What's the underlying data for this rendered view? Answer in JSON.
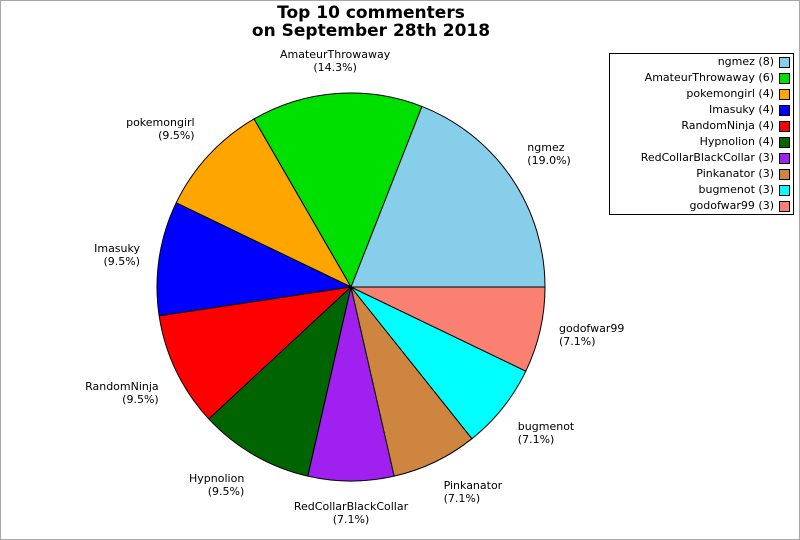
{
  "figure": {
    "title_line1": "Top 10 commenters",
    "title_line2": "on September 28th 2018",
    "background_color": "#ffffff",
    "border_color": "#a6a6a6"
  },
  "chart_data": {
    "type": "pie",
    "title": "Top 10 commenters on September 28th 2018",
    "total_count": 42,
    "start_angle_deg": 0,
    "direction": "counterclockwise",
    "legend_position": "upper-right",
    "legend_marker_side": "right",
    "slices": [
      {
        "name": "ngmez",
        "count": 8,
        "pct": 19.0,
        "pct_label": "(19.0%)",
        "legend_text": "ngmez (8)",
        "color": "#87CEEB"
      },
      {
        "name": "AmateurThrowaway",
        "count": 6,
        "pct": 14.3,
        "pct_label": "(14.3%)",
        "legend_text": "AmateurThrowaway (6)",
        "color": "#00E000"
      },
      {
        "name": "pokemongirl",
        "count": 4,
        "pct": 9.5,
        "pct_label": "(9.5%)",
        "legend_text": "pokemongirl (4)",
        "color": "#FFA500"
      },
      {
        "name": "Imasuky",
        "count": 4,
        "pct": 9.5,
        "pct_label": "(9.5%)",
        "legend_text": "Imasuky (4)",
        "color": "#0000FF"
      },
      {
        "name": "RandomNinja",
        "count": 4,
        "pct": 9.5,
        "pct_label": "(9.5%)",
        "legend_text": "RandomNinja (4)",
        "color": "#FF0000"
      },
      {
        "name": "Hypnolion",
        "count": 4,
        "pct": 9.5,
        "pct_label": "(9.5%)",
        "legend_text": "Hypnolion (4)",
        "color": "#006400"
      },
      {
        "name": "RedCollarBlackCollar",
        "count": 3,
        "pct": 7.1,
        "pct_label": "(7.1%)",
        "legend_text": "RedCollarBlackCollar (3)",
        "color": "#A020F0"
      },
      {
        "name": "Pinkanator",
        "count": 3,
        "pct": 7.1,
        "pct_label": "(7.1%)",
        "legend_text": "Pinkanator (3)",
        "color": "#CD853F"
      },
      {
        "name": "bugmenot",
        "count": 3,
        "pct": 7.1,
        "pct_label": "(7.1%)",
        "legend_text": "bugmenot (3)",
        "color": "#00FFFF"
      },
      {
        "name": "godofwar99",
        "count": 3,
        "pct": 7.1,
        "pct_label": "(7.1%)",
        "legend_text": "godofwar99 (3)",
        "color": "#FA8072"
      }
    ]
  }
}
